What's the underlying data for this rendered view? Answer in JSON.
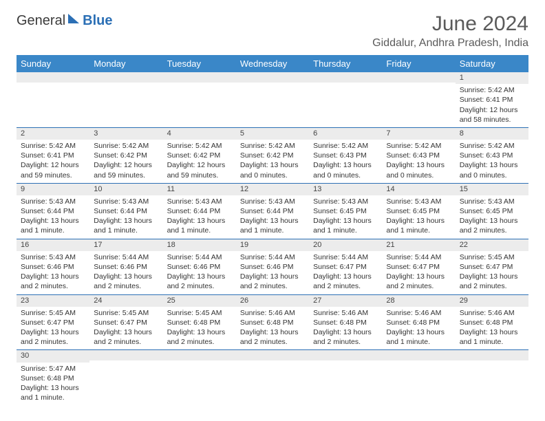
{
  "logo": {
    "text1": "General",
    "text2": "Blue"
  },
  "title": "June 2024",
  "location": "Giddalur, Andhra Pradesh, India",
  "colors": {
    "header_bg": "#3a87c8",
    "header_text": "#ffffff",
    "row_divider": "#2b6fb5",
    "daynum_bg": "#ececec",
    "text": "#333333",
    "title_text": "#5a5a5a"
  },
  "weekdays": [
    "Sunday",
    "Monday",
    "Tuesday",
    "Wednesday",
    "Thursday",
    "Friday",
    "Saturday"
  ],
  "weeks": [
    [
      null,
      null,
      null,
      null,
      null,
      null,
      {
        "d": "1",
        "sr": "5:42 AM",
        "ss": "6:41 PM",
        "dl": "12 hours and 58 minutes."
      }
    ],
    [
      {
        "d": "2",
        "sr": "5:42 AM",
        "ss": "6:41 PM",
        "dl": "12 hours and 59 minutes."
      },
      {
        "d": "3",
        "sr": "5:42 AM",
        "ss": "6:42 PM",
        "dl": "12 hours and 59 minutes."
      },
      {
        "d": "4",
        "sr": "5:42 AM",
        "ss": "6:42 PM",
        "dl": "12 hours and 59 minutes."
      },
      {
        "d": "5",
        "sr": "5:42 AM",
        "ss": "6:42 PM",
        "dl": "13 hours and 0 minutes."
      },
      {
        "d": "6",
        "sr": "5:42 AM",
        "ss": "6:43 PM",
        "dl": "13 hours and 0 minutes."
      },
      {
        "d": "7",
        "sr": "5:42 AM",
        "ss": "6:43 PM",
        "dl": "13 hours and 0 minutes."
      },
      {
        "d": "8",
        "sr": "5:42 AM",
        "ss": "6:43 PM",
        "dl": "13 hours and 0 minutes."
      }
    ],
    [
      {
        "d": "9",
        "sr": "5:43 AM",
        "ss": "6:44 PM",
        "dl": "13 hours and 1 minute."
      },
      {
        "d": "10",
        "sr": "5:43 AM",
        "ss": "6:44 PM",
        "dl": "13 hours and 1 minute."
      },
      {
        "d": "11",
        "sr": "5:43 AM",
        "ss": "6:44 PM",
        "dl": "13 hours and 1 minute."
      },
      {
        "d": "12",
        "sr": "5:43 AM",
        "ss": "6:44 PM",
        "dl": "13 hours and 1 minute."
      },
      {
        "d": "13",
        "sr": "5:43 AM",
        "ss": "6:45 PM",
        "dl": "13 hours and 1 minute."
      },
      {
        "d": "14",
        "sr": "5:43 AM",
        "ss": "6:45 PM",
        "dl": "13 hours and 1 minute."
      },
      {
        "d": "15",
        "sr": "5:43 AM",
        "ss": "6:45 PM",
        "dl": "13 hours and 2 minutes."
      }
    ],
    [
      {
        "d": "16",
        "sr": "5:43 AM",
        "ss": "6:46 PM",
        "dl": "13 hours and 2 minutes."
      },
      {
        "d": "17",
        "sr": "5:44 AM",
        "ss": "6:46 PM",
        "dl": "13 hours and 2 minutes."
      },
      {
        "d": "18",
        "sr": "5:44 AM",
        "ss": "6:46 PM",
        "dl": "13 hours and 2 minutes."
      },
      {
        "d": "19",
        "sr": "5:44 AM",
        "ss": "6:46 PM",
        "dl": "13 hours and 2 minutes."
      },
      {
        "d": "20",
        "sr": "5:44 AM",
        "ss": "6:47 PM",
        "dl": "13 hours and 2 minutes."
      },
      {
        "d": "21",
        "sr": "5:44 AM",
        "ss": "6:47 PM",
        "dl": "13 hours and 2 minutes."
      },
      {
        "d": "22",
        "sr": "5:45 AM",
        "ss": "6:47 PM",
        "dl": "13 hours and 2 minutes."
      }
    ],
    [
      {
        "d": "23",
        "sr": "5:45 AM",
        "ss": "6:47 PM",
        "dl": "13 hours and 2 minutes."
      },
      {
        "d": "24",
        "sr": "5:45 AM",
        "ss": "6:47 PM",
        "dl": "13 hours and 2 minutes."
      },
      {
        "d": "25",
        "sr": "5:45 AM",
        "ss": "6:48 PM",
        "dl": "13 hours and 2 minutes."
      },
      {
        "d": "26",
        "sr": "5:46 AM",
        "ss": "6:48 PM",
        "dl": "13 hours and 2 minutes."
      },
      {
        "d": "27",
        "sr": "5:46 AM",
        "ss": "6:48 PM",
        "dl": "13 hours and 2 minutes."
      },
      {
        "d": "28",
        "sr": "5:46 AM",
        "ss": "6:48 PM",
        "dl": "13 hours and 1 minute."
      },
      {
        "d": "29",
        "sr": "5:46 AM",
        "ss": "6:48 PM",
        "dl": "13 hours and 1 minute."
      }
    ],
    [
      {
        "d": "30",
        "sr": "5:47 AM",
        "ss": "6:48 PM",
        "dl": "13 hours and 1 minute."
      },
      null,
      null,
      null,
      null,
      null,
      null
    ]
  ],
  "labels": {
    "sunrise": "Sunrise:",
    "sunset": "Sunset:",
    "daylight": "Daylight:"
  }
}
